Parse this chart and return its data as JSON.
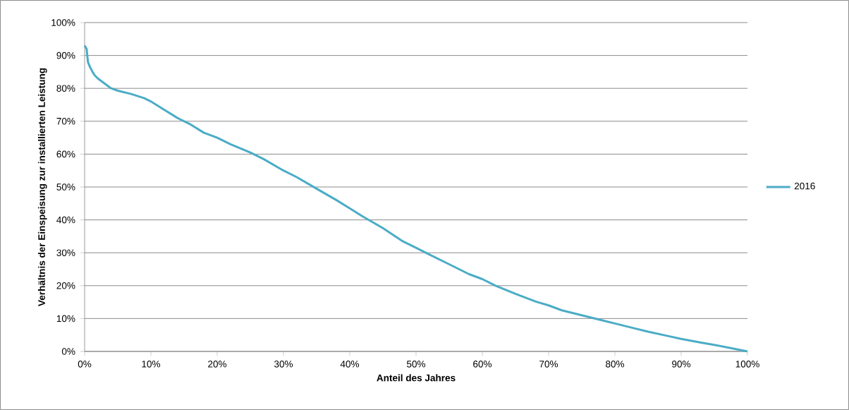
{
  "chart_data": {
    "type": "line",
    "xlabel": "Anteil des Jahres",
    "ylabel": "Verhältnis der Einspeisung  zur installierten Leistung",
    "x": [
      0,
      0.3,
      0.5,
      0.8,
      1.2,
      1.5,
      2,
      3,
      4,
      5,
      7,
      9,
      10,
      12,
      14,
      16,
      18,
      20,
      22,
      25,
      27,
      30,
      32,
      35,
      38,
      40,
      42,
      45,
      48,
      50,
      52,
      55,
      58,
      60,
      62,
      65,
      68,
      70,
      72,
      75,
      78,
      80,
      83,
      85,
      88,
      90,
      93,
      95,
      98,
      100
    ],
    "series": [
      {
        "name": "2016",
        "color": "#4bacc6",
        "values": [
          93,
          92,
          88,
          86.5,
          85,
          84,
          83,
          81.5,
          80,
          79.3,
          78.3,
          77,
          76,
          73.5,
          71,
          69,
          66.5,
          65,
          63,
          60.5,
          58.5,
          55,
          53,
          49.5,
          46,
          43.5,
          41,
          37.5,
          33.5,
          31.5,
          29.5,
          26.5,
          23.5,
          22,
          20,
          17.5,
          15.2,
          14,
          12.5,
          11,
          9.5,
          8.5,
          7,
          6,
          4.7,
          3.8,
          2.7,
          2,
          0.8,
          0
        ]
      }
    ],
    "xlim": [
      0,
      100
    ],
    "ylim": [
      0,
      100
    ],
    "xticks": [
      {
        "value": 0,
        "label": "0%"
      },
      {
        "value": 10,
        "label": "10%"
      },
      {
        "value": 20,
        "label": "20%"
      },
      {
        "value": 30,
        "label": "30%"
      },
      {
        "value": 40,
        "label": "40%"
      },
      {
        "value": 50,
        "label": "50%"
      },
      {
        "value": 60,
        "label": "60%"
      },
      {
        "value": 70,
        "label": "70%"
      },
      {
        "value": 80,
        "label": "80%"
      },
      {
        "value": 90,
        "label": "90%"
      },
      {
        "value": 100,
        "label": "100%"
      }
    ],
    "yticks": [
      {
        "value": 0,
        "label": "0%"
      },
      {
        "value": 10,
        "label": "10%"
      },
      {
        "value": 20,
        "label": "20%"
      },
      {
        "value": 30,
        "label": "30%"
      },
      {
        "value": 40,
        "label": "40%"
      },
      {
        "value": 50,
        "label": "50%"
      },
      {
        "value": 60,
        "label": "60%"
      },
      {
        "value": 70,
        "label": "70%"
      },
      {
        "value": 80,
        "label": "80%"
      },
      {
        "value": 90,
        "label": "90%"
      },
      {
        "value": 100,
        "label": "100%"
      }
    ],
    "grid": "y",
    "legend": "right",
    "marker": "none",
    "line_style": "solid"
  }
}
